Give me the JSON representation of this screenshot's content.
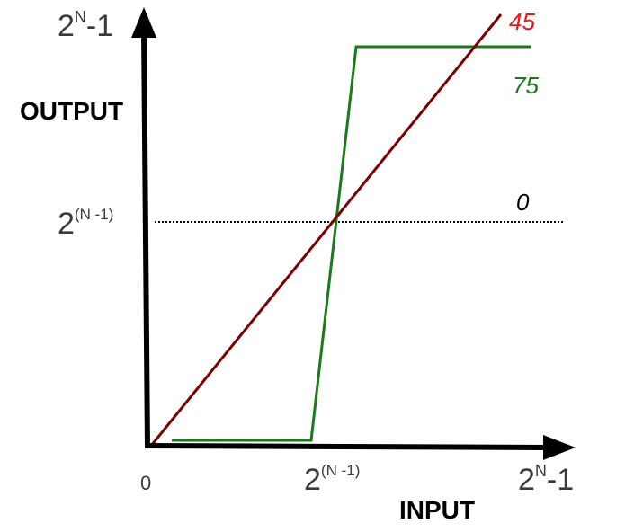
{
  "y_axis": {
    "title": "OUTPUT",
    "max_label": {
      "base": "2",
      "sup": "N",
      "suffix": "-1"
    },
    "mid_label": {
      "base": "2",
      "sup": "(N -1)",
      "suffix": ""
    }
  },
  "x_axis": {
    "title": "INPUT",
    "zero_label": "0",
    "mid_label": {
      "base": "2",
      "sup": "(N -1)",
      "suffix": ""
    },
    "max_label": {
      "base": "2",
      "sup": "N",
      "suffix": "-1"
    }
  },
  "curves": [
    {
      "label": "45",
      "color": "#7b0000"
    },
    {
      "label": "75",
      "color": "#1a7a1a"
    },
    {
      "label": "0",
      "color": "#000000"
    }
  ],
  "colors": {
    "axis": "#000000",
    "line_45": "#7b0000",
    "line_75": "#1a7a1a",
    "line_0": "#000000",
    "label_45": "#e8161b",
    "label_75": "#1a7a1a",
    "label_0": "#000000",
    "tick_labels": "#3a3a3a"
  }
}
